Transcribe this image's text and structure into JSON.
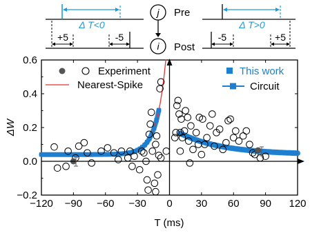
{
  "timing_diagram": {
    "pre_label": "Pre",
    "post_label": "Post",
    "pre_neuron": "j",
    "post_neuron": "i",
    "left_delta": "Δ T<0",
    "right_delta": "Δ T>0",
    "left_window_a": "+5",
    "left_window_b": "-5",
    "right_window_a": "-5",
    "right_window_b": "+5",
    "accent_color": "#1e9bd7"
  },
  "chart_data": {
    "type": "scatter",
    "xlabel": "T (ms)",
    "ylabel": "ΔW",
    "xlim": [
      -120,
      120
    ],
    "ylim": [
      -0.2,
      0.6
    ],
    "xticks": [
      -120,
      -90,
      -60,
      -30,
      0,
      30,
      60,
      90,
      120
    ],
    "xtick_labels": [
      "−120",
      "−90",
      "−60",
      "−30",
      "0",
      "30",
      "60",
      "90",
      "120"
    ],
    "yticks": [
      -0.2,
      0.0,
      0.2,
      0.4,
      0.6
    ],
    "ytick_labels": [
      "−0.2",
      "0.0",
      "0.2",
      "0.4",
      "0.6"
    ],
    "legend_left": [
      {
        "label": "Experiment",
        "marker": "open-circle"
      },
      {
        "label": "Nearest-Spike",
        "marker": "line",
        "color": "#e8302f"
      }
    ],
    "legend_right": [
      {
        "label": "This work",
        "marker": "square",
        "color": "#1e7fd0"
      },
      {
        "label": "Circuit",
        "marker": "line-square",
        "color": "#1e7fd0"
      }
    ],
    "series": [
      {
        "name": "Experiment",
        "style": "open-circle",
        "points": [
          [
            -108,
            0.085
          ],
          [
            -105,
            -0.04
          ],
          [
            -97,
            -0.03
          ],
          [
            -95,
            0.06
          ],
          [
            -88,
            0.02
          ],
          [
            -85,
            0.09
          ],
          [
            -80,
            0.11
          ],
          [
            -77,
            0.05
          ],
          [
            -73,
            -0.01
          ],
          [
            -64,
            0.06
          ],
          [
            -58,
            0.08
          ],
          [
            -52,
            0.05
          ],
          [
            -48,
            0.01
          ],
          [
            -45,
            0.06
          ],
          [
            -39,
            0.02
          ],
          [
            -37,
            0.06
          ],
          [
            -35,
            -0.03
          ],
          [
            -33,
            0.03
          ],
          [
            -28,
            -0.05
          ],
          [
            -26,
            0.06
          ],
          [
            -24,
            0.05
          ],
          [
            -22,
            0.0
          ],
          [
            -21,
            -0.11
          ],
          [
            -20,
            -0.17
          ],
          [
            -19,
            0.16
          ],
          [
            -18,
            0.22
          ],
          [
            -17,
            0.29
          ],
          [
            -16,
            0.06
          ],
          [
            -13,
            0.1
          ],
          [
            -12,
            0.15
          ],
          [
            -11,
            -0.08
          ],
          [
            -10,
            0.035
          ],
          [
            -9,
            0.43
          ],
          [
            -8,
            0.47
          ],
          [
            -8,
            0.02
          ],
          [
            -13,
            -0.18
          ],
          [
            -14,
            -0.13
          ],
          [
            5,
            0.14
          ],
          [
            6,
            0.17
          ],
          [
            7,
            0.33
          ],
          [
            8,
            0.36
          ],
          [
            9,
            0.28
          ],
          [
            10,
            0.06
          ],
          [
            11,
            0.25
          ],
          [
            12,
            0.14
          ],
          [
            14,
            0.18
          ],
          [
            15,
            0.3
          ],
          [
            17,
            0.26
          ],
          [
            18,
            0.12
          ],
          [
            19,
            -0.01
          ],
          [
            20,
            0.21
          ],
          [
            22,
            0.07
          ],
          [
            25,
            0.17
          ],
          [
            27,
            0.1
          ],
          [
            28,
            0.26
          ],
          [
            30,
            0.04
          ],
          [
            31,
            0.25
          ],
          [
            33,
            0.1
          ],
          [
            35,
            0.14
          ],
          [
            38,
            0.21
          ],
          [
            40,
            0.28
          ],
          [
            42,
            0.09
          ],
          [
            44,
            0.17
          ],
          [
            47,
            0.19
          ],
          [
            50,
            0.07
          ],
          [
            53,
            0.11
          ],
          [
            55,
            0.24
          ],
          [
            57,
            0.25
          ],
          [
            60,
            0.14
          ],
          [
            62,
            0.18
          ],
          [
            65,
            0.12
          ],
          [
            69,
            0.15
          ],
          [
            72,
            0.18
          ],
          [
            75,
            0.1
          ],
          [
            78,
            0.05
          ],
          [
            80,
            0.04
          ],
          [
            85,
            0.02
          ],
          [
            90,
            0.03
          ],
          [
            10,
            0.17
          ],
          [
            -3,
            0.06
          ]
        ]
      },
      {
        "name": "Experiment",
        "style": "filled-circle",
        "points": [
          [
            -90,
            0.0
          ],
          [
            83,
            0.065
          ]
        ]
      },
      {
        "name": "Nearest-Spike",
        "style": "line",
        "color": "#e8302f",
        "model": {
          "a_minus": 0.04,
          "a_plus": 0.84,
          "tau_minus": 8.6,
          "b_plus": 0.04,
          "c_plus": 0.162,
          "tau_plus": 40.0
        },
        "x_range": [
          -120,
          120
        ]
      },
      {
        "name": "This work",
        "style": "square",
        "color": "#1e7fd0",
        "x_range_neg": [
          -120,
          -9
        ],
        "x_range_pos": [
          10,
          120
        ],
        "x_step": 2.2
      },
      {
        "name": "Circuit",
        "style": "band",
        "color": "#1e7fd0",
        "x_range_neg": [
          -120,
          -10
        ],
        "x_range_pos": [
          10,
          120
        ]
      }
    ]
  }
}
